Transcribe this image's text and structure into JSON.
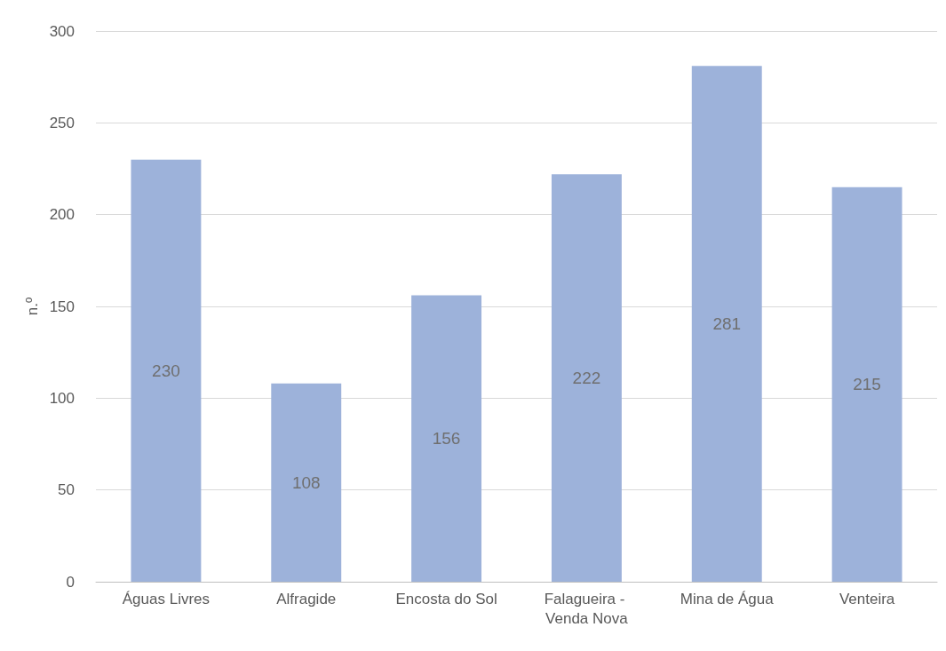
{
  "chart_data": {
    "type": "bar",
    "ylabel": "n.º",
    "categories": [
      "Águas Livres",
      "Alfragide",
      "Encosta do Sol",
      "Falagueira - Venda Nova",
      "Mina de Água",
      "Venteira"
    ],
    "values": [
      230,
      108,
      156,
      222,
      281,
      215
    ],
    "color": "#9db2da",
    "ylim": [
      0,
      300
    ],
    "yticks": [
      0,
      50,
      100,
      150,
      200,
      250,
      300
    ],
    "grid": "y",
    "data_labels": true
  }
}
